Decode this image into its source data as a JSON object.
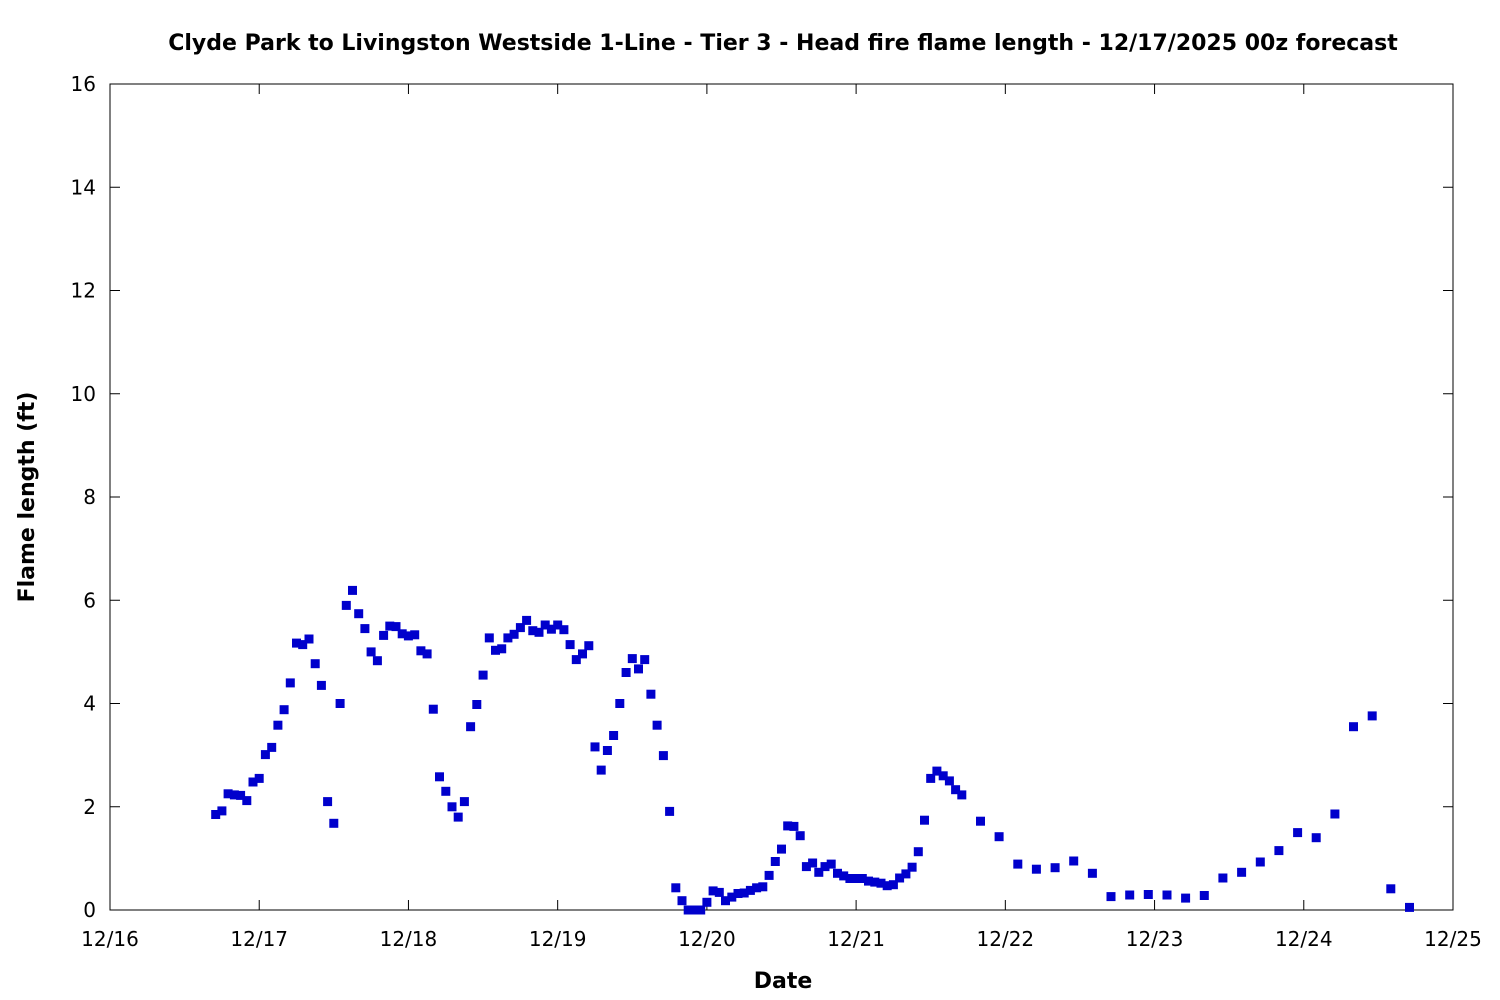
{
  "chart_data": {
    "type": "scatter",
    "title": "Clyde Park to Livingston Westside 1-Line - Tier 3 - Head fire flame length - 12/17/2025 00z forecast",
    "xlabel": "Date",
    "ylabel": "Flame length (ft)",
    "xlim": [
      "2025-12-16T00:00",
      "2025-12-25T00:00"
    ],
    "ylim": [
      0,
      16
    ],
    "x_ticks": [
      "12/16",
      "12/17",
      "12/18",
      "12/19",
      "12/20",
      "12/21",
      "12/22",
      "12/23",
      "12/24",
      "12/25"
    ],
    "y_ticks": [
      0,
      2,
      4,
      6,
      8,
      10,
      12,
      14,
      16
    ],
    "grid": false,
    "legend": false,
    "marker_color": "#0000cc",
    "series": [
      {
        "marker": "square",
        "x": [
          "2025-12-16T17:00",
          "2025-12-16T18:00",
          "2025-12-16T19:00",
          "2025-12-16T20:00",
          "2025-12-16T21:00",
          "2025-12-16T22:00",
          "2025-12-16T23:00",
          "2025-12-17T00:00",
          "2025-12-17T01:00",
          "2025-12-17T02:00",
          "2025-12-17T03:00",
          "2025-12-17T04:00",
          "2025-12-17T05:00",
          "2025-12-17T06:00",
          "2025-12-17T07:00",
          "2025-12-17T08:00",
          "2025-12-17T09:00",
          "2025-12-17T10:00",
          "2025-12-17T11:00",
          "2025-12-17T12:00",
          "2025-12-17T13:00",
          "2025-12-17T14:00",
          "2025-12-17T15:00",
          "2025-12-17T16:00",
          "2025-12-17T17:00",
          "2025-12-17T18:00",
          "2025-12-17T19:00",
          "2025-12-17T20:00",
          "2025-12-17T21:00",
          "2025-12-17T22:00",
          "2025-12-17T23:00",
          "2025-12-18T00:00",
          "2025-12-18T01:00",
          "2025-12-18T02:00",
          "2025-12-18T03:00",
          "2025-12-18T04:00",
          "2025-12-18T05:00",
          "2025-12-18T06:00",
          "2025-12-18T07:00",
          "2025-12-18T08:00",
          "2025-12-18T09:00",
          "2025-12-18T10:00",
          "2025-12-18T11:00",
          "2025-12-18T12:00",
          "2025-12-18T13:00",
          "2025-12-18T14:00",
          "2025-12-18T15:00",
          "2025-12-18T16:00",
          "2025-12-18T17:00",
          "2025-12-18T18:00",
          "2025-12-18T19:00",
          "2025-12-18T20:00",
          "2025-12-18T21:00",
          "2025-12-18T22:00",
          "2025-12-18T23:00",
          "2025-12-19T00:00",
          "2025-12-19T01:00",
          "2025-12-19T02:00",
          "2025-12-19T03:00",
          "2025-12-19T04:00",
          "2025-12-19T05:00",
          "2025-12-19T06:00",
          "2025-12-19T07:00",
          "2025-12-19T08:00",
          "2025-12-19T09:00",
          "2025-12-19T10:00",
          "2025-12-19T11:00",
          "2025-12-19T12:00",
          "2025-12-19T13:00",
          "2025-12-19T14:00",
          "2025-12-19T15:00",
          "2025-12-19T16:00",
          "2025-12-19T17:00",
          "2025-12-19T18:00",
          "2025-12-19T19:00",
          "2025-12-19T20:00",
          "2025-12-19T21:00",
          "2025-12-19T22:00",
          "2025-12-19T23:00",
          "2025-12-20T00:00",
          "2025-12-20T01:00",
          "2025-12-20T02:00",
          "2025-12-20T03:00",
          "2025-12-20T04:00",
          "2025-12-20T05:00",
          "2025-12-20T06:00",
          "2025-12-20T07:00",
          "2025-12-20T08:00",
          "2025-12-20T09:00",
          "2025-12-20T10:00",
          "2025-12-20T11:00",
          "2025-12-20T12:00",
          "2025-12-20T13:00",
          "2025-12-20T14:00",
          "2025-12-20T15:00",
          "2025-12-20T16:00",
          "2025-12-20T17:00",
          "2025-12-20T18:00",
          "2025-12-20T19:00",
          "2025-12-20T20:00",
          "2025-12-20T21:00",
          "2025-12-20T22:00",
          "2025-12-20T23:00",
          "2025-12-21T00:00",
          "2025-12-21T01:00",
          "2025-12-21T02:00",
          "2025-12-21T03:00",
          "2025-12-21T04:00",
          "2025-12-21T05:00",
          "2025-12-21T06:00",
          "2025-12-21T07:00",
          "2025-12-21T08:00",
          "2025-12-21T09:00",
          "2025-12-21T10:00",
          "2025-12-21T11:00",
          "2025-12-21T12:00",
          "2025-12-21T13:00",
          "2025-12-21T14:00",
          "2025-12-21T15:00",
          "2025-12-21T16:00",
          "2025-12-21T17:00",
          "2025-12-21T20:00",
          "2025-12-21T23:00",
          "2025-12-22T02:00",
          "2025-12-22T05:00",
          "2025-12-22T08:00",
          "2025-12-22T11:00",
          "2025-12-22T14:00",
          "2025-12-22T17:00",
          "2025-12-22T20:00",
          "2025-12-22T23:00",
          "2025-12-23T02:00",
          "2025-12-23T05:00",
          "2025-12-23T08:00",
          "2025-12-23T11:00",
          "2025-12-23T14:00",
          "2025-12-23T17:00",
          "2025-12-23T20:00",
          "2025-12-23T23:00",
          "2025-12-24T02:00",
          "2025-12-24T05:00",
          "2025-12-24T08:00",
          "2025-12-24T11:00",
          "2025-12-24T14:00",
          "2025-12-24T17:00"
        ],
        "y": [
          1.85,
          1.92,
          2.25,
          2.23,
          2.22,
          2.12,
          2.48,
          2.55,
          3.01,
          3.15,
          3.58,
          3.88,
          4.4,
          5.17,
          5.14,
          5.25,
          4.77,
          4.35,
          2.1,
          1.68,
          4.0,
          5.9,
          6.19,
          5.74,
          5.45,
          5.0,
          4.83,
          5.32,
          5.5,
          5.49,
          5.35,
          5.31,
          5.33,
          5.02,
          4.96,
          3.89,
          2.58,
          2.3,
          2.0,
          1.8,
          2.1,
          3.55,
          3.98,
          4.55,
          5.27,
          5.03,
          5.06,
          5.27,
          5.34,
          5.47,
          5.61,
          5.41,
          5.38,
          5.52,
          5.44,
          5.52,
          5.43,
          5.14,
          4.85,
          4.96,
          5.12,
          3.16,
          2.71,
          3.09,
          3.38,
          4.0,
          4.6,
          4.87,
          4.67,
          4.85,
          4.18,
          3.58,
          2.99,
          1.91,
          0.43,
          0.18,
          0.0,
          0.0,
          0.0,
          0.15,
          0.37,
          0.34,
          0.18,
          0.25,
          0.32,
          0.33,
          0.38,
          0.43,
          0.45,
          0.67,
          0.94,
          1.18,
          1.63,
          1.62,
          1.44,
          0.84,
          0.91,
          0.73,
          0.84,
          0.89,
          0.71,
          0.66,
          0.61,
          0.61,
          0.61,
          0.56,
          0.54,
          0.52,
          0.47,
          0.49,
          0.62,
          0.7,
          0.83,
          1.13,
          1.74,
          2.55,
          2.69,
          2.6,
          2.5,
          2.33,
          2.23,
          1.72,
          1.42,
          0.89,
          0.79,
          0.82,
          0.95,
          0.71,
          0.26,
          0.29,
          0.3,
          0.29,
          0.23,
          0.28,
          0.62,
          0.73,
          0.93,
          1.15,
          1.5,
          1.4,
          1.86,
          3.55,
          3.76,
          0.41,
          0.05
        ]
      }
    ]
  }
}
